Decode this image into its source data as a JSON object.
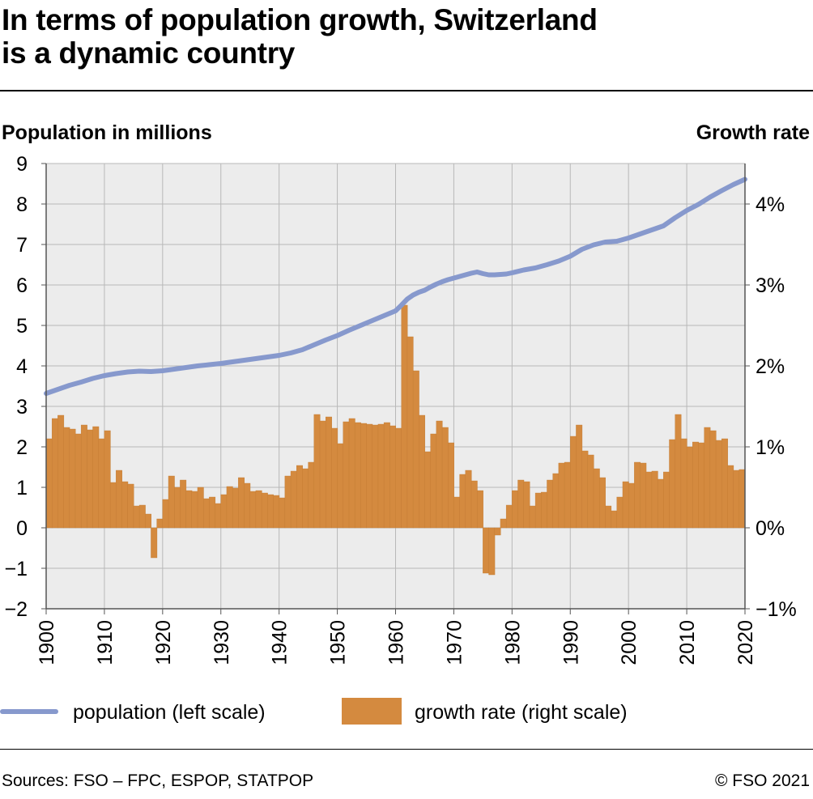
{
  "header": {
    "title_line1": "In terms of population growth, Switzerland",
    "title_line2": "is a dynamic country"
  },
  "legend": {
    "population_label": "population (left scale)",
    "growth_label": "growth rate (right scale)"
  },
  "footer": {
    "source": "Sources: FSO – FPC, ESPOP, STATPOP",
    "copyright": "© FSO 2021"
  },
  "colors": {
    "population_line": "#8799cd",
    "growth_bar": "#d48a3f",
    "plot_background": "#ececec",
    "grid": "#b8b8b8"
  },
  "chart_data": {
    "type": "bar",
    "xlabel": "",
    "ylabel": "Population in millions",
    "y2label": "Growth rate",
    "ylim": [
      -2,
      9
    ],
    "y2lim": [
      -1,
      4.5
    ],
    "xlim": [
      1900,
      2020
    ],
    "yticks": [
      "−2",
      "−1",
      "0",
      "1",
      "2",
      "3",
      "4",
      "5",
      "6",
      "7",
      "8",
      "9"
    ],
    "y2ticks": [
      "−1%",
      "0%",
      "1%",
      "2%",
      "3%",
      "4%"
    ],
    "xticks": [
      "1900",
      "1910",
      "1920",
      "1930",
      "1940",
      "1950",
      "1960",
      "1970",
      "1980",
      "1990",
      "2000",
      "2010",
      "2020"
    ],
    "grid": true,
    "legend_position": "bottom",
    "series": [
      {
        "name": "population (left scale)",
        "type": "line",
        "axis": "left",
        "x": [
          1900,
          1902,
          1904,
          1906,
          1908,
          1910,
          1912,
          1914,
          1916,
          1918,
          1920,
          1922,
          1924,
          1926,
          1928,
          1930,
          1932,
          1934,
          1936,
          1938,
          1940,
          1942,
          1944,
          1946,
          1948,
          1950,
          1952,
          1954,
          1956,
          1958,
          1960,
          1961,
          1962,
          1963,
          1964,
          1965,
          1966,
          1967,
          1968,
          1969,
          1970,
          1971,
          1972,
          1973,
          1974,
          1975,
          1976,
          1977,
          1978,
          1979,
          1980,
          1982,
          1984,
          1986,
          1988,
          1990,
          1992,
          1994,
          1996,
          1998,
          2000,
          2002,
          2004,
          2006,
          2008,
          2010,
          2012,
          2014,
          2016,
          2018,
          2020
        ],
        "values": [
          3.32,
          3.42,
          3.52,
          3.6,
          3.69,
          3.76,
          3.81,
          3.85,
          3.87,
          3.86,
          3.88,
          3.92,
          3.96,
          4.0,
          4.03,
          4.06,
          4.1,
          4.14,
          4.18,
          4.22,
          4.26,
          4.32,
          4.4,
          4.52,
          4.64,
          4.75,
          4.88,
          5.0,
          5.12,
          5.24,
          5.36,
          5.5,
          5.65,
          5.75,
          5.82,
          5.87,
          5.95,
          6.02,
          6.08,
          6.13,
          6.17,
          6.21,
          6.25,
          6.29,
          6.32,
          6.28,
          6.25,
          6.25,
          6.26,
          6.27,
          6.3,
          6.37,
          6.42,
          6.5,
          6.59,
          6.71,
          6.88,
          6.99,
          7.06,
          7.08,
          7.16,
          7.26,
          7.36,
          7.46,
          7.66,
          7.84,
          7.99,
          8.17,
          8.33,
          8.48,
          8.61
        ]
      },
      {
        "name": "growth rate (right scale)",
        "type": "bar",
        "axis": "right",
        "x": [
          1900,
          1901,
          1902,
          1903,
          1904,
          1905,
          1906,
          1907,
          1908,
          1909,
          1910,
          1911,
          1912,
          1913,
          1914,
          1915,
          1916,
          1917,
          1918,
          1919,
          1920,
          1921,
          1922,
          1923,
          1924,
          1925,
          1926,
          1927,
          1928,
          1929,
          1930,
          1931,
          1932,
          1933,
          1934,
          1935,
          1936,
          1937,
          1938,
          1939,
          1940,
          1941,
          1942,
          1943,
          1944,
          1945,
          1946,
          1947,
          1948,
          1949,
          1950,
          1951,
          1952,
          1953,
          1954,
          1955,
          1956,
          1957,
          1958,
          1959,
          1960,
          1961,
          1962,
          1963,
          1964,
          1965,
          1966,
          1967,
          1968,
          1969,
          1970,
          1971,
          1972,
          1973,
          1974,
          1975,
          1976,
          1977,
          1978,
          1979,
          1980,
          1981,
          1982,
          1983,
          1984,
          1985,
          1986,
          1987,
          1988,
          1989,
          1990,
          1991,
          1992,
          1993,
          1994,
          1995,
          1996,
          1997,
          1998,
          1999,
          2000,
          2001,
          2002,
          2003,
          2004,
          2005,
          2006,
          2007,
          2008,
          2009,
          2010,
          2011,
          2012,
          2013,
          2014,
          2015,
          2016,
          2017,
          2018,
          2019
        ],
        "values": [
          1.1,
          1.35,
          1.39,
          1.24,
          1.22,
          1.16,
          1.27,
          1.21,
          1.25,
          1.1,
          1.2,
          0.56,
          0.71,
          0.57,
          0.54,
          0.27,
          0.28,
          0.17,
          -0.37,
          0.11,
          0.35,
          0.64,
          0.5,
          0.59,
          0.46,
          0.45,
          0.5,
          0.36,
          0.38,
          0.3,
          0.41,
          0.51,
          0.49,
          0.62,
          0.55,
          0.45,
          0.46,
          0.43,
          0.41,
          0.4,
          0.37,
          0.64,
          0.7,
          0.77,
          0.73,
          0.81,
          1.4,
          1.32,
          1.37,
          1.23,
          1.04,
          1.31,
          1.35,
          1.3,
          1.29,
          1.28,
          1.27,
          1.28,
          1.3,
          1.26,
          1.23,
          2.75,
          2.36,
          1.94,
          1.39,
          0.94,
          1.16,
          1.32,
          1.24,
          1.05,
          0.38,
          0.66,
          0.71,
          0.58,
          0.46,
          -0.56,
          -0.58,
          -0.09,
          0.11,
          0.28,
          0.46,
          0.59,
          0.57,
          0.27,
          0.43,
          0.44,
          0.59,
          0.67,
          0.8,
          0.81,
          1.13,
          1.27,
          0.95,
          0.9,
          0.73,
          0.62,
          0.27,
          0.21,
          0.38,
          0.57,
          0.55,
          0.81,
          0.8,
          0.69,
          0.7,
          0.6,
          0.69,
          1.09,
          1.4,
          1.1,
          1.0,
          1.06,
          1.05,
          1.24,
          1.2,
          1.08,
          1.1,
          0.77,
          0.71,
          0.72
        ]
      }
    ]
  }
}
